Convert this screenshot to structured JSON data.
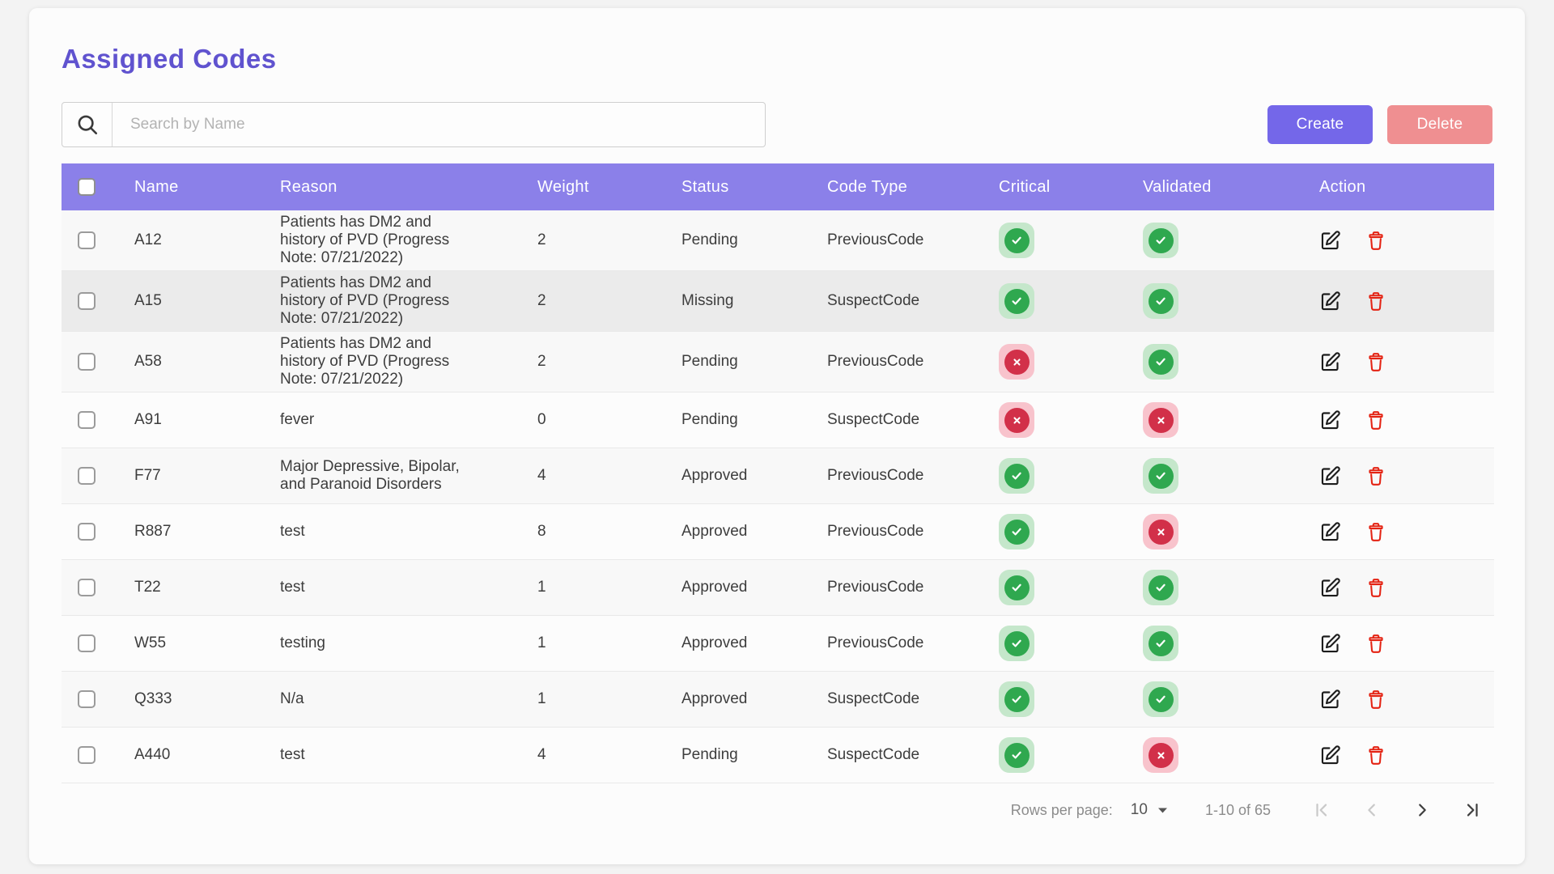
{
  "page": {
    "title": "Assigned Codes"
  },
  "search": {
    "placeholder": "Search by Name"
  },
  "toolbar": {
    "create_label": "Create",
    "delete_label": "Delete"
  },
  "table": {
    "columns": [
      "Name",
      "Reason",
      "Weight",
      "Status",
      "Code Type",
      "Critical",
      "Validated",
      "Action"
    ],
    "rows": [
      {
        "name": "A12",
        "reason": "Patients has DM2 and history of PVD (Progress Note: 07/21/2022)",
        "weight": "2",
        "status": "Pending",
        "code_type": "PreviousCode",
        "critical": true,
        "validated": true,
        "highlighted": false
      },
      {
        "name": "A15",
        "reason": "Patients has DM2 and history of PVD (Progress Note: 07/21/2022)",
        "weight": "2",
        "status": "Missing",
        "code_type": "SuspectCode",
        "critical": true,
        "validated": true,
        "highlighted": true
      },
      {
        "name": "A58",
        "reason": "Patients has DM2 and history of PVD (Progress Note: 07/21/2022)",
        "weight": "2",
        "status": "Pending",
        "code_type": "PreviousCode",
        "critical": false,
        "validated": true,
        "highlighted": false
      },
      {
        "name": "A91",
        "reason": "fever",
        "weight": "0",
        "status": "Pending",
        "code_type": "SuspectCode",
        "critical": false,
        "validated": false,
        "highlighted": false
      },
      {
        "name": "F77",
        "reason": "Major Depressive, Bipolar, and Paranoid Disorders",
        "weight": "4",
        "status": "Approved",
        "code_type": "PreviousCode",
        "critical": true,
        "validated": true,
        "highlighted": false
      },
      {
        "name": "R887",
        "reason": "test",
        "weight": "8",
        "status": "Approved",
        "code_type": "PreviousCode",
        "critical": true,
        "validated": false,
        "highlighted": false
      },
      {
        "name": "T22",
        "reason": "test",
        "weight": "1",
        "status": "Approved",
        "code_type": "PreviousCode",
        "critical": true,
        "validated": true,
        "highlighted": false
      },
      {
        "name": "W55",
        "reason": "testing",
        "weight": "1",
        "status": "Approved",
        "code_type": "PreviousCode",
        "critical": true,
        "validated": true,
        "highlighted": false
      },
      {
        "name": "Q333",
        "reason": "N/a",
        "weight": "1",
        "status": "Approved",
        "code_type": "SuspectCode",
        "critical": true,
        "validated": true,
        "highlighted": false
      },
      {
        "name": "A440",
        "reason": "test",
        "weight": "4",
        "status": "Pending",
        "code_type": "SuspectCode",
        "critical": true,
        "validated": false,
        "highlighted": false
      }
    ]
  },
  "pagination": {
    "rows_per_page_label": "Rows per page:",
    "rows_per_page_value": "10",
    "range_label": "1-10 of 65"
  },
  "colors": {
    "title_purple": "#6053cf",
    "header_purple": "#8b80e9",
    "create_button": "#7467e9",
    "delete_button": "#ef8f91",
    "success_green": "#2fa84f",
    "success_green_bg": "#c5e7cb",
    "error_red": "#d23049",
    "error_red_bg": "#f8c3cc",
    "trash_red": "#e42313"
  }
}
